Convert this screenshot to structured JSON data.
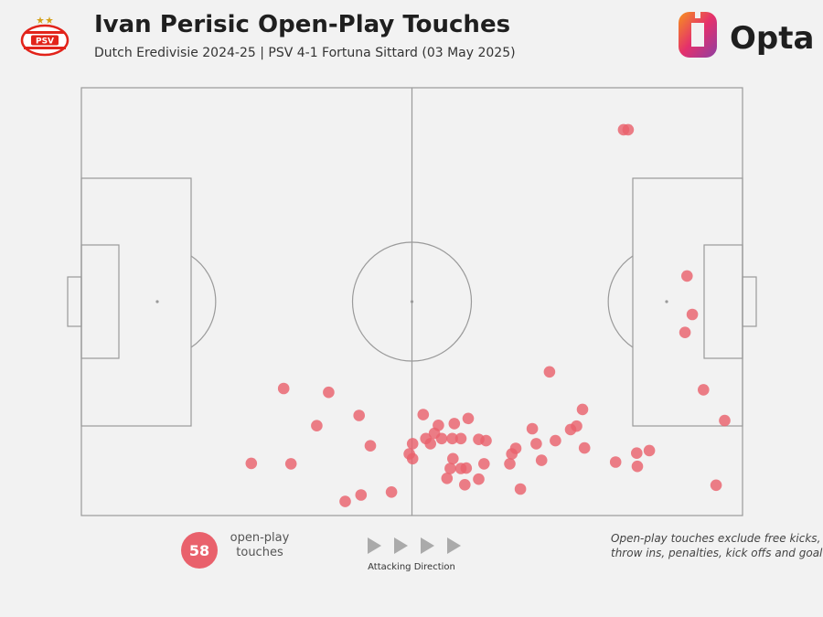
{
  "header": {
    "title": "Ivan Perisic Open-Play Touches",
    "subtitle": "Dutch Eredivisie 2024-25 | PSV 4-1 Fortuna Sittard (03 May 2025)",
    "badge_text": "PSV",
    "brand": "Opta"
  },
  "colors": {
    "marker": "#e9616c",
    "pitch_line": "#9a9a9a",
    "background": "#f2f2f2",
    "badge_red": "#e2231a",
    "brand_orange": "#f7931e",
    "brand_purple": "#8e3fa3"
  },
  "chart_data": {
    "type": "scatter",
    "title": "Ivan Perisic Open-Play Touches",
    "subtitle": "Dutch Eredivisie 2024-25 | PSV 4-1 Fortuna Sittard (03 May 2025)",
    "xlim": [
      0,
      100
    ],
    "ylim": [
      0,
      100
    ],
    "attacking_direction": "left-to-right",
    "series": [
      {
        "points": [
          [
            82.0,
            9.8
          ],
          [
            82.7,
            9.8
          ],
          [
            91.6,
            44.0
          ],
          [
            92.4,
            53.0
          ],
          [
            91.3,
            57.2
          ],
          [
            70.8,
            66.4
          ],
          [
            75.8,
            75.2
          ],
          [
            74.9,
            79.1
          ],
          [
            74.0,
            79.9
          ],
          [
            68.2,
            79.7
          ],
          [
            76.1,
            84.2
          ],
          [
            71.7,
            82.5
          ],
          [
            68.8,
            83.2
          ],
          [
            61.2,
            82.5
          ],
          [
            65.7,
            84.3
          ],
          [
            58.5,
            77.3
          ],
          [
            56.4,
            78.5
          ],
          [
            54.0,
            78.9
          ],
          [
            52.8,
            83.2
          ],
          [
            52.1,
            82.0
          ],
          [
            51.7,
            76.4
          ],
          [
            53.4,
            80.8
          ],
          [
            56.1,
            82.0
          ],
          [
            57.4,
            82.0
          ],
          [
            60.1,
            82.2
          ],
          [
            65.1,
            85.6
          ],
          [
            64.8,
            87.9
          ],
          [
            60.9,
            87.9
          ],
          [
            57.4,
            89.0
          ],
          [
            55.8,
            89.0
          ],
          [
            54.5,
            82.0
          ],
          [
            50.1,
            83.2
          ],
          [
            49.6,
            85.6
          ],
          [
            50.1,
            86.7
          ],
          [
            58.0,
            92.8
          ],
          [
            55.3,
            91.3
          ],
          [
            60.1,
            91.5
          ],
          [
            66.4,
            93.8
          ],
          [
            58.2,
            88.9
          ],
          [
            56.2,
            86.7
          ],
          [
            69.6,
            87.1
          ],
          [
            80.8,
            87.5
          ],
          [
            85.9,
            84.8
          ],
          [
            84.0,
            85.4
          ],
          [
            84.1,
            88.5
          ],
          [
            97.3,
            77.8
          ],
          [
            96.0,
            92.9
          ],
          [
            94.1,
            70.6
          ],
          [
            30.6,
            70.3
          ],
          [
            37.4,
            71.2
          ],
          [
            35.6,
            79.0
          ],
          [
            31.7,
            87.9
          ],
          [
            25.7,
            87.8
          ],
          [
            42.0,
            76.6
          ],
          [
            43.7,
            83.7
          ],
          [
            39.9,
            96.7
          ],
          [
            42.3,
            95.2
          ],
          [
            46.9,
            94.5
          ]
        ]
      }
    ]
  },
  "footer": {
    "count": "58",
    "count_label_1": "open-play",
    "count_label_2": "touches",
    "attacking_label": "Attacking Direction",
    "note_line_1": "Open-play touches exclude free kicks,",
    "note_line_2": "throw ins, penalties, kick offs and goal"
  }
}
